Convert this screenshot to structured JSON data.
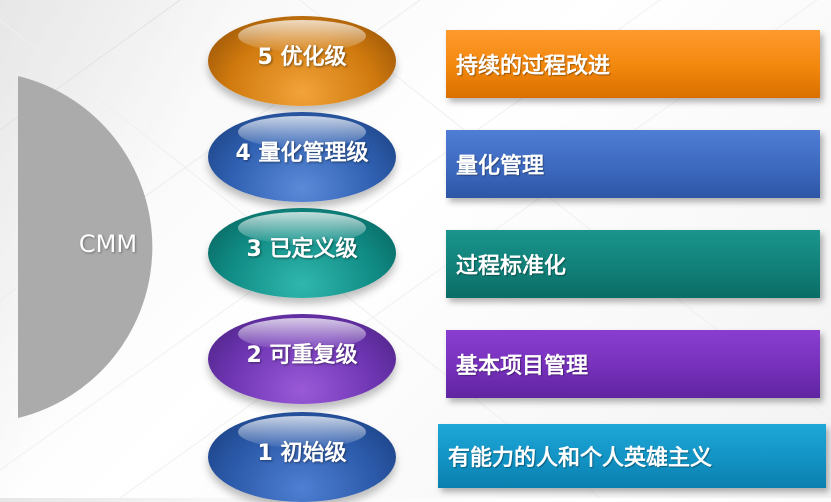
{
  "center": {
    "label": "CMM",
    "color": "#ababab"
  },
  "levels": [
    {
      "label": "5 优化级",
      "description": "持续的过程改进",
      "color": "#d07a0e"
    },
    {
      "label": "4 量化管理级",
      "description": "量化管理",
      "color": "#2f5fb0"
    },
    {
      "label": "3 已定义级",
      "description": "过程标准化",
      "color": "#108c85"
    },
    {
      "label": "2 可重复级",
      "description": "基本项目管理",
      "color": "#6e35b3"
    },
    {
      "label": "1 初始级",
      "description": "有能力的人和个人英雄主义",
      "color": "#2c5aaa"
    }
  ]
}
